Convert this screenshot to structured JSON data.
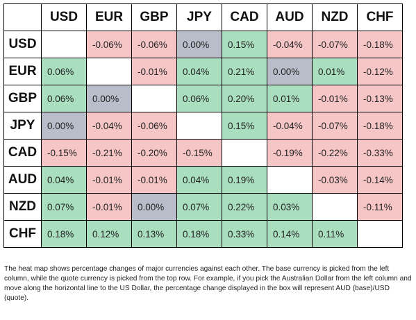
{
  "chart_data": {
    "type": "heatmap",
    "title": "",
    "columns": [
      "USD",
      "EUR",
      "GBP",
      "JPY",
      "CAD",
      "AUD",
      "NZD",
      "CHF"
    ],
    "rows": [
      "USD",
      "EUR",
      "GBP",
      "JPY",
      "CAD",
      "AUD",
      "NZD",
      "CHF"
    ],
    "cells": [
      [
        "",
        "-0.06%",
        "-0.06%",
        "0.00%",
        "0.15%",
        "-0.04%",
        "-0.07%",
        "-0.18%"
      ],
      [
        "0.06%",
        "",
        "-0.01%",
        "0.04%",
        "0.21%",
        "0.00%",
        "0.01%",
        "-0.12%"
      ],
      [
        "0.06%",
        "0.00%",
        "",
        "0.06%",
        "0.20%",
        "0.01%",
        "-0.01%",
        "-0.13%"
      ],
      [
        "0.00%",
        "-0.04%",
        "-0.06%",
        "",
        "0.15%",
        "-0.04%",
        "-0.07%",
        "-0.18%"
      ],
      [
        "-0.15%",
        "-0.21%",
        "-0.20%",
        "-0.15%",
        "",
        "-0.19%",
        "-0.22%",
        "-0.33%"
      ],
      [
        "0.04%",
        "-0.01%",
        "-0.01%",
        "0.04%",
        "0.19%",
        "",
        "-0.03%",
        "-0.14%"
      ],
      [
        "0.07%",
        "-0.01%",
        "0.00%",
        "0.07%",
        "0.22%",
        "0.03%",
        "",
        "-0.11%"
      ],
      [
        "0.18%",
        "0.12%",
        "0.13%",
        "0.18%",
        "0.33%",
        "0.14%",
        "0.11%",
        ""
      ]
    ],
    "colors": {
      "positive": "#a9dfbf",
      "negative": "#f6c6c6",
      "zero": "#b8bdc9",
      "empty": "#ffffff"
    }
  },
  "caption": "The heat map shows percentage changes of major currencies against each other. The base currency is picked from the left column, while the quote currency is picked from the top row. For example, if you pick the Australian Dollar from the left column and move along the horizontal line to the US Dollar, the percentage change displayed in the box will represent AUD (base)/USD (quote)."
}
